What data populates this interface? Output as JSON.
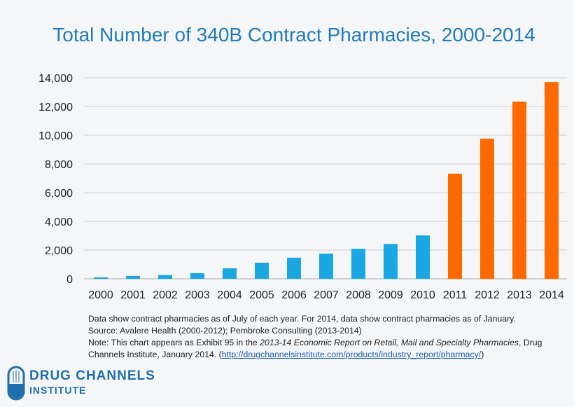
{
  "chart_data": {
    "type": "bar",
    "title": "Total Number of 340B Contract Pharmacies, 2000-2014",
    "xlabel": "",
    "ylabel": "",
    "categories": [
      "2000",
      "2001",
      "2002",
      "2003",
      "2004",
      "2005",
      "2006",
      "2007",
      "2008",
      "2009",
      "2010",
      "2011",
      "2012",
      "2013",
      "2014"
    ],
    "values": [
      100,
      200,
      260,
      390,
      730,
      1120,
      1470,
      1750,
      2090,
      2430,
      3020,
      7320,
      9760,
      12340,
      13700
    ],
    "bar_colors": [
      "#1aa7e2",
      "#1aa7e2",
      "#1aa7e2",
      "#1aa7e2",
      "#1aa7e2",
      "#1aa7e2",
      "#1aa7e2",
      "#1aa7e2",
      "#1aa7e2",
      "#1aa7e2",
      "#1aa7e2",
      "#ff6a00",
      "#ff6a00",
      "#ff6a00",
      "#ff6a00"
    ],
    "ylim": [
      0,
      14000
    ],
    "yticks": [
      0,
      2000,
      4000,
      6000,
      8000,
      10000,
      12000,
      14000
    ],
    "ytick_labels": [
      "0",
      "2,000",
      "4,000",
      "6,000",
      "8,000",
      "10,000",
      "12,000",
      "14,000"
    ],
    "grid": true,
    "legend": "none"
  },
  "notes": {
    "line1": "Data show contract pharmacies as of July of each year. For 2014, data show contract pharmacies as of January.",
    "line2": "Source: Avalere Health (2000-2012); Pembroke Consulting (2013-2014)",
    "line3_prefix": "Note: This chart appears as Exhibit 95 in the ",
    "line3_italic": "2013-14 Economic Report on Retail, Mail and Specialty Pharmacies",
    "line3_suffix": ", Drug",
    "line4_prefix": "Channels Institute, January 2014.  (",
    "link": "http://drugchannelsinstitute.com/products/industry_report/pharmacy/",
    "line4_suffix": ")"
  },
  "logo": {
    "line1": "DRUG CHANNELS",
    "line2": "INSTITUTE",
    "color": "#1f6fae"
  }
}
